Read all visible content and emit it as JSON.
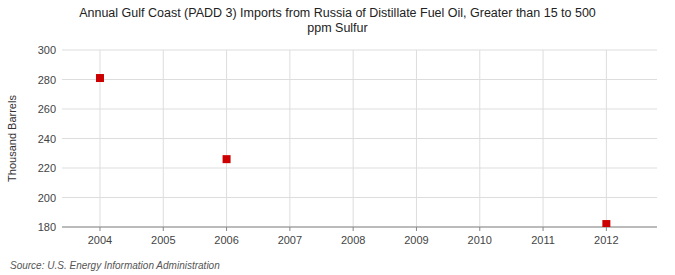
{
  "chart_data": {
    "type": "scatter",
    "title": "Annual Gulf Coast (PADD 3) Imports from Russia of Distillate Fuel Oil, Greater than 15 to 500\nppm Sulfur",
    "y_label": "Thousand Barrels",
    "annotations": [
      "Source: U.S. Energy Information Administration"
    ],
    "x": [
      2004,
      2006,
      2012
    ],
    "values": [
      281,
      226,
      182
    ],
    "color": "#cc0000",
    "marker": "square",
    "xlim": [
      2003.4,
      2012.8
    ],
    "ylim": [
      180,
      300
    ],
    "xticks": [
      2004,
      2005,
      2006,
      2007,
      2008,
      2009,
      2010,
      2011,
      2012
    ],
    "yticks": [
      180,
      200,
      220,
      240,
      260,
      280,
      300
    ],
    "grid": true
  }
}
